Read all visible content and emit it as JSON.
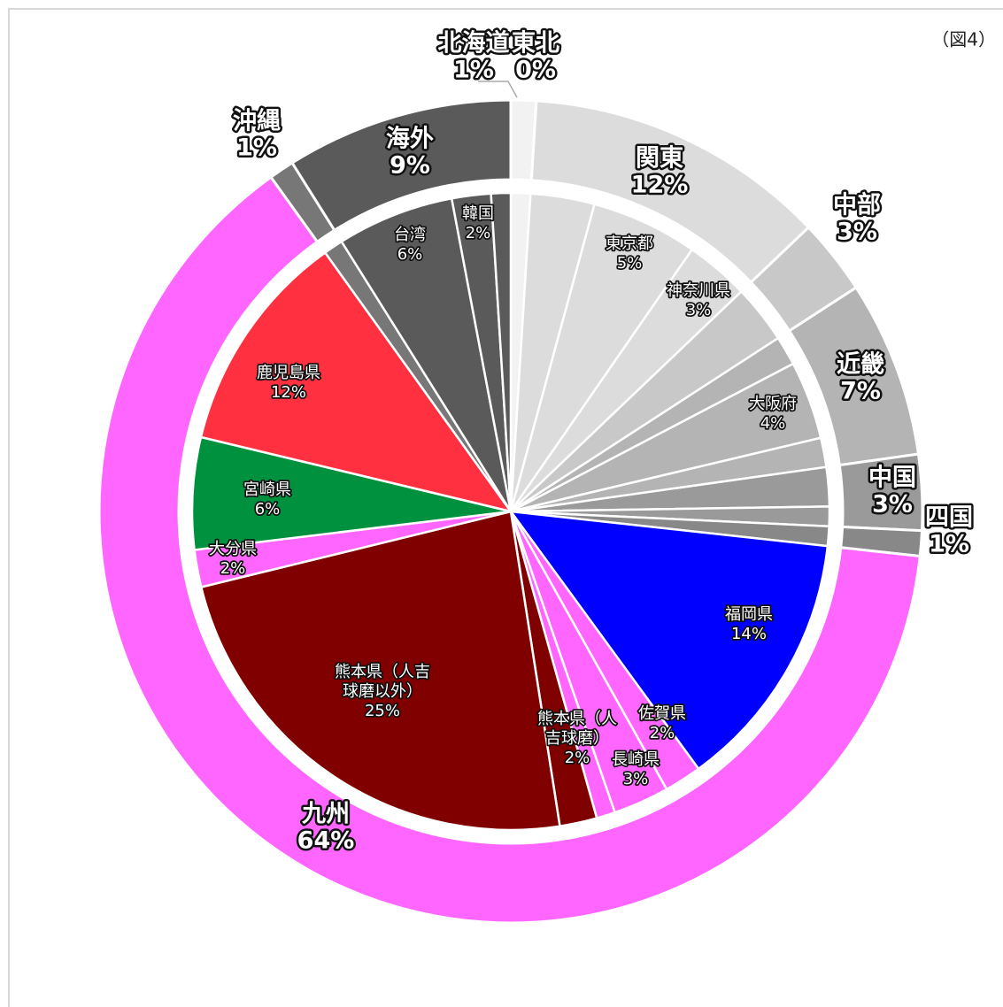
{
  "chart_data": {
    "type": "sunburst",
    "annotation": "（図4）",
    "outer": {
      "categories": [
        "北海道",
        "東北",
        "関東",
        "中部",
        "近畿",
        "中国",
        "四国",
        "九州",
        "沖縄",
        "海外"
      ],
      "values": [
        1,
        0,
        12,
        3,
        7,
        3,
        1,
        64,
        1,
        9
      ],
      "value_labels": [
        "1%",
        "0%",
        "12%",
        "3%",
        "7%",
        "3%",
        "1%",
        "64%",
        "1%",
        "9%"
      ],
      "colors": [
        "#f2f2f2",
        "#e6e6e6",
        "#dcdcdc",
        "#c8c8c8",
        "#b4b4b4",
        "#9a9a9a",
        "#888888",
        "#ff66ff",
        "#777777",
        "#5a5a5a"
      ]
    },
    "inner": {
      "categories": [
        null,
        null,
        "東京都",
        "神奈川県",
        null,
        null,
        "大阪府",
        null,
        null,
        null,
        null,
        "福岡県",
        "佐賀県",
        "長崎県",
        null,
        "熊本県（人吉球磨）",
        "熊本県（人吉球磨以外）",
        "大分県",
        "宮崎県",
        "鹿児島県",
        null,
        "台湾",
        "韓国",
        null
      ],
      "values": [
        1,
        3,
        5,
        3,
        3,
        1.5,
        4,
        1.5,
        2,
        1,
        1,
        14,
        2,
        3,
        1,
        2,
        25,
        2,
        6,
        12,
        1,
        6,
        2,
        1
      ],
      "value_labels": [
        null,
        null,
        "5%",
        "3%",
        null,
        null,
        "4%",
        null,
        null,
        null,
        null,
        "14%",
        "2%",
        "3%",
        null,
        "2%",
        "25%",
        "2%",
        "6%",
        "12%",
        null,
        "6%",
        "2%",
        null
      ],
      "parent": [
        0,
        2,
        2,
        2,
        3,
        4,
        4,
        4,
        5,
        5,
        6,
        7,
        7,
        7,
        7,
        7,
        7,
        7,
        7,
        7,
        8,
        9,
        9,
        9
      ],
      "colors": [
        "#f2f2f2",
        "#dcdcdc",
        "#dcdcdc",
        "#dcdcdc",
        "#c8c8c8",
        "#b4b4b4",
        "#b4b4b4",
        "#b4b4b4",
        "#9a9a9a",
        "#9a9a9a",
        "#888888",
        "#0000ff",
        "#ff66ff",
        "#ff66ff",
        "#ff66ff",
        "#800000",
        "#800000",
        "#ff66ff",
        "#00913f",
        "#ff3040",
        "#777777",
        "#5a5a5a",
        "#5a5a5a",
        "#5a5a5a"
      ]
    }
  }
}
